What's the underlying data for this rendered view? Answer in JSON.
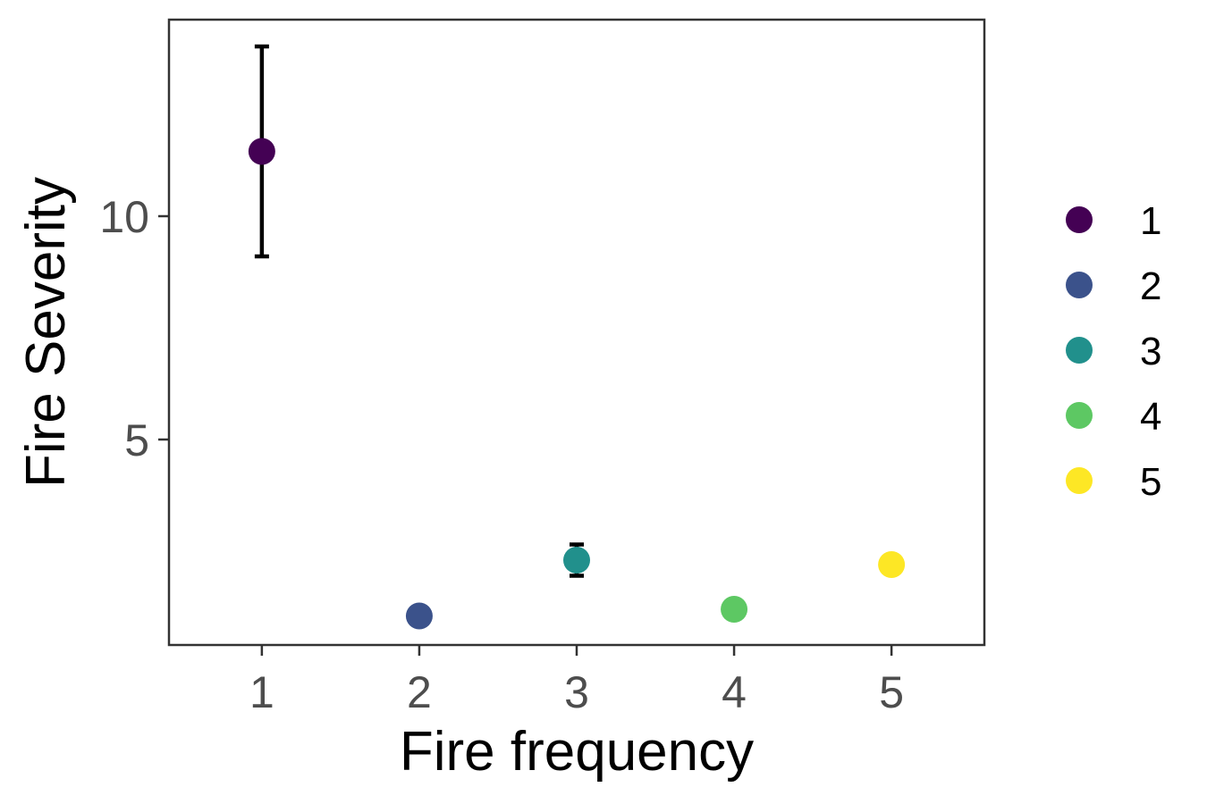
{
  "chart_data": {
    "type": "scatter",
    "title": "",
    "xlabel": "Fire frequency",
    "ylabel": "Fire Severity",
    "categories": [
      "1",
      "2",
      "3",
      "4",
      "5"
    ],
    "x_tick_labels": [
      "1",
      "2",
      "3",
      "4",
      "5"
    ],
    "y_ticks": [
      5,
      10
    ],
    "y_tick_labels": [
      "5",
      "10"
    ],
    "xlim": [
      0.41,
      5.59
    ],
    "ylim": [
      0.4,
      14.4
    ],
    "grid": false,
    "legend_position": "right",
    "legend_entries": [
      "1",
      "2",
      "3",
      "4",
      "5"
    ],
    "points": [
      {
        "x": 1,
        "y": 11.45,
        "lower": 9.1,
        "upper": 13.8,
        "color": "#440154"
      },
      {
        "x": 2,
        "y": 1.05,
        "lower": null,
        "upper": null,
        "color": "#3B528B"
      },
      {
        "x": 3,
        "y": 2.3,
        "lower": 1.95,
        "upper": 2.65,
        "color": "#21908C"
      },
      {
        "x": 4,
        "y": 1.2,
        "lower": null,
        "upper": null,
        "color": "#5DC863"
      },
      {
        "x": 5,
        "y": 2.2,
        "lower": null,
        "upper": null,
        "color": "#FDE725"
      }
    ]
  }
}
